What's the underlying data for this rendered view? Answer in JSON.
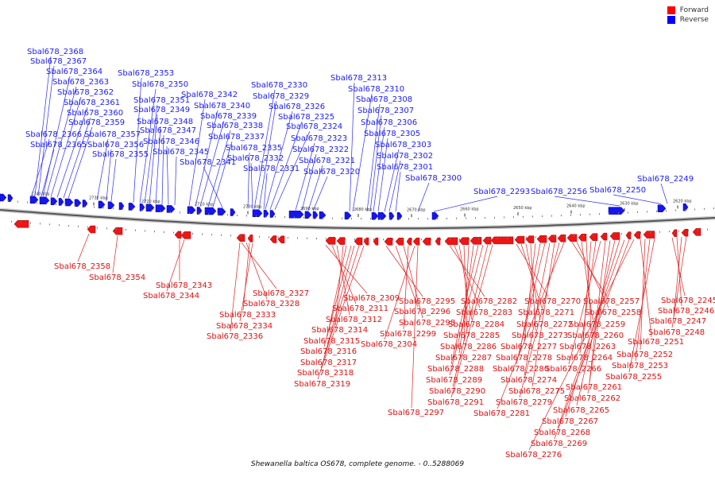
{
  "legend": {
    "forward_label": "Forward",
    "reverse_label": "Reverse",
    "forward_color": "#ff0000",
    "reverse_color": "#0000ff"
  },
  "caption": "Shewanella baltica OS678, complete genome. - 0..5288069",
  "ticks": [
    "2740 kbp",
    "2730 kbp",
    "2720 kbp",
    "2710 kbp",
    "2700 kbp",
    "2690 kbp",
    "2680 kbp",
    "2670 kbp",
    "2660 kbp",
    "2650 kbp",
    "2640 kbp",
    "2630 kbp",
    "2620 kbp"
  ],
  "reverse_labels": [
    "Sbal678_2368",
    "Sbal678_2367",
    "Sbal678_2364",
    "Sbal678_2363",
    "Sbal678_2362",
    "Sbal678_2361",
    "Sbal678_2360",
    "Sbal678_2359",
    "Sbal678_2366",
    "Sbal678_2365",
    "Sbal678_2353",
    "Sbal678_2350",
    "Sbal678_2351",
    "Sbal678_2349",
    "Sbal678_2348",
    "Sbal678_2347",
    "Sbal678_2357",
    "Sbal678_2356",
    "Sbal678_2355",
    "Sbal678_2346",
    "Sbal678_2345",
    "Sbal678_2342",
    "Sbal678_2340",
    "Sbal678_2339",
    "Sbal678_2338",
    "Sbal678_2337",
    "Sbal678_2341",
    "Sbal678_2330",
    "Sbal678_2329",
    "Sbal678_2326",
    "Sbal678_2325",
    "Sbal678_2324",
    "Sbal678_2335",
    "Sbal678_2332",
    "Sbal678_2331",
    "Sbal678_2323",
    "Sbal678_2322",
    "Sbal678_2321",
    "Sbal678_2320",
    "Sbal678_2313",
    "Sbal678_2310",
    "Sbal678_2308",
    "Sbal678_2307",
    "Sbal678_2306",
    "Sbal678_2305",
    "Sbal678_2303",
    "Sbal678_2302",
    "Sbal678_2301",
    "Sbal678_2300",
    "Sbal678_2293",
    "Sbal678_2256",
    "Sbal678_2250",
    "Sbal678_2249"
  ],
  "forward_labels": [
    "Sbal678_2358",
    "Sbal678_2354",
    "Sbal678_2343",
    "Sbal678_2344",
    "Sbal678_2327",
    "Sbal678_2328",
    "Sbal678_2333",
    "Sbal678_2334",
    "Sbal678_2336",
    "Sbal678_2309",
    "Sbal678_2311",
    "Sbal678_2312",
    "Sbal678_2314",
    "Sbal678_2315",
    "Sbal678_2316",
    "Sbal678_2317",
    "Sbal678_2318",
    "Sbal678_2319",
    "Sbal678_2295",
    "Sbal678_2296",
    "Sbal678_2298",
    "Sbal678_2299",
    "Sbal678_2304",
    "Sbal678_2282",
    "Sbal678_2283",
    "Sbal678_2284",
    "Sbal678_2285",
    "Sbal678_2286",
    "Sbal678_2287",
    "Sbal678_2288",
    "Sbal678_2289",
    "Sbal678_2290",
    "Sbal678_2291",
    "Sbal678_2297",
    "Sbal678_2270",
    "Sbal678_2271",
    "Sbal678_2272",
    "Sbal678_2273",
    "Sbal678_2277",
    "Sbal678_2278",
    "Sbal678_2280",
    "Sbal678_2274",
    "Sbal678_2275",
    "Sbal678_2279",
    "Sbal678_2281",
    "Sbal678_2257",
    "Sbal678_2258",
    "Sbal678_2259",
    "Sbal678_2260",
    "Sbal678_2263",
    "Sbal678_2264",
    "Sbal678_2266",
    "Sbal678_2261",
    "Sbal678_2262",
    "Sbal678_2265",
    "Sbal678_2267",
    "Sbal678_2268",
    "Sbal678_2269",
    "Sbal678_2276",
    "Sbal678_2245",
    "Sbal678_2246",
    "Sbal678_2247",
    "Sbal678_2248",
    "Sbal678_2251",
    "Sbal678_2252",
    "Sbal678_2253",
    "Sbal678_2255"
  ]
}
